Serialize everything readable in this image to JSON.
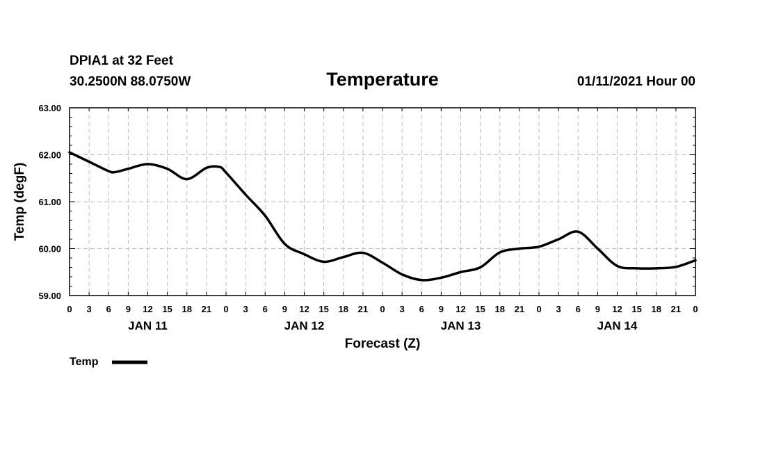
{
  "header": {
    "station": "DPIA1 at 32 Feet",
    "coords": "30.2500N 88.0750W",
    "title": "Temperature",
    "datetime": "01/11/2021 Hour 00"
  },
  "chart_data": {
    "type": "line",
    "title": "Temperature",
    "xlabel": "Forecast (Z)",
    "ylabel": "Temp (degF)",
    "ylim": [
      59.0,
      63.0
    ],
    "y_ticks": [
      "59.00",
      "60.00",
      "61.00",
      "62.00",
      "63.00"
    ],
    "y_tick_values": [
      59.0,
      60.0,
      61.0,
      62.0,
      63.0
    ],
    "xlim": [
      0,
      96
    ],
    "x_tick_hours": [
      0,
      3,
      6,
      9,
      12,
      15,
      18,
      21,
      24,
      27,
      30,
      33,
      36,
      39,
      42,
      45,
      48,
      51,
      54,
      57,
      60,
      63,
      66,
      69,
      72,
      75,
      78,
      81,
      84,
      87,
      90,
      93,
      96
    ],
    "x_tick_labels": [
      "0",
      "3",
      "6",
      "9",
      "12",
      "15",
      "18",
      "21",
      "0",
      "3",
      "6",
      "9",
      "12",
      "15",
      "18",
      "21",
      "0",
      "3",
      "6",
      "9",
      "12",
      "15",
      "18",
      "21",
      "0",
      "3",
      "6",
      "9",
      "12",
      "15",
      "18",
      "21",
      "0"
    ],
    "day_labels": [
      {
        "label": "JAN 11",
        "hour": 12
      },
      {
        "label": "JAN 12",
        "hour": 36
      },
      {
        "label": "JAN 13",
        "hour": 60
      },
      {
        "label": "JAN 14",
        "hour": 84
      }
    ],
    "grid": true,
    "legend_position": "bottom-left",
    "series": [
      {
        "name": "Temp",
        "x": [
          0,
          3,
          6,
          7,
          9,
          12,
          15,
          18,
          21,
          23,
          24,
          27,
          30,
          33,
          36,
          39,
          42,
          45,
          48,
          51,
          54,
          57,
          60,
          63,
          66,
          69,
          72,
          75,
          78,
          81,
          84,
          87,
          90,
          93,
          96
        ],
        "values": [
          62.05,
          61.85,
          61.65,
          61.63,
          61.7,
          61.8,
          61.7,
          61.48,
          61.72,
          61.74,
          61.62,
          61.15,
          60.7,
          60.1,
          59.88,
          59.72,
          59.82,
          59.91,
          59.7,
          59.45,
          59.33,
          59.38,
          59.5,
          59.6,
          59.92,
          60.0,
          60.04,
          60.2,
          60.36,
          60.0,
          59.63,
          59.58,
          59.58,
          59.61,
          59.75
        ]
      }
    ]
  }
}
